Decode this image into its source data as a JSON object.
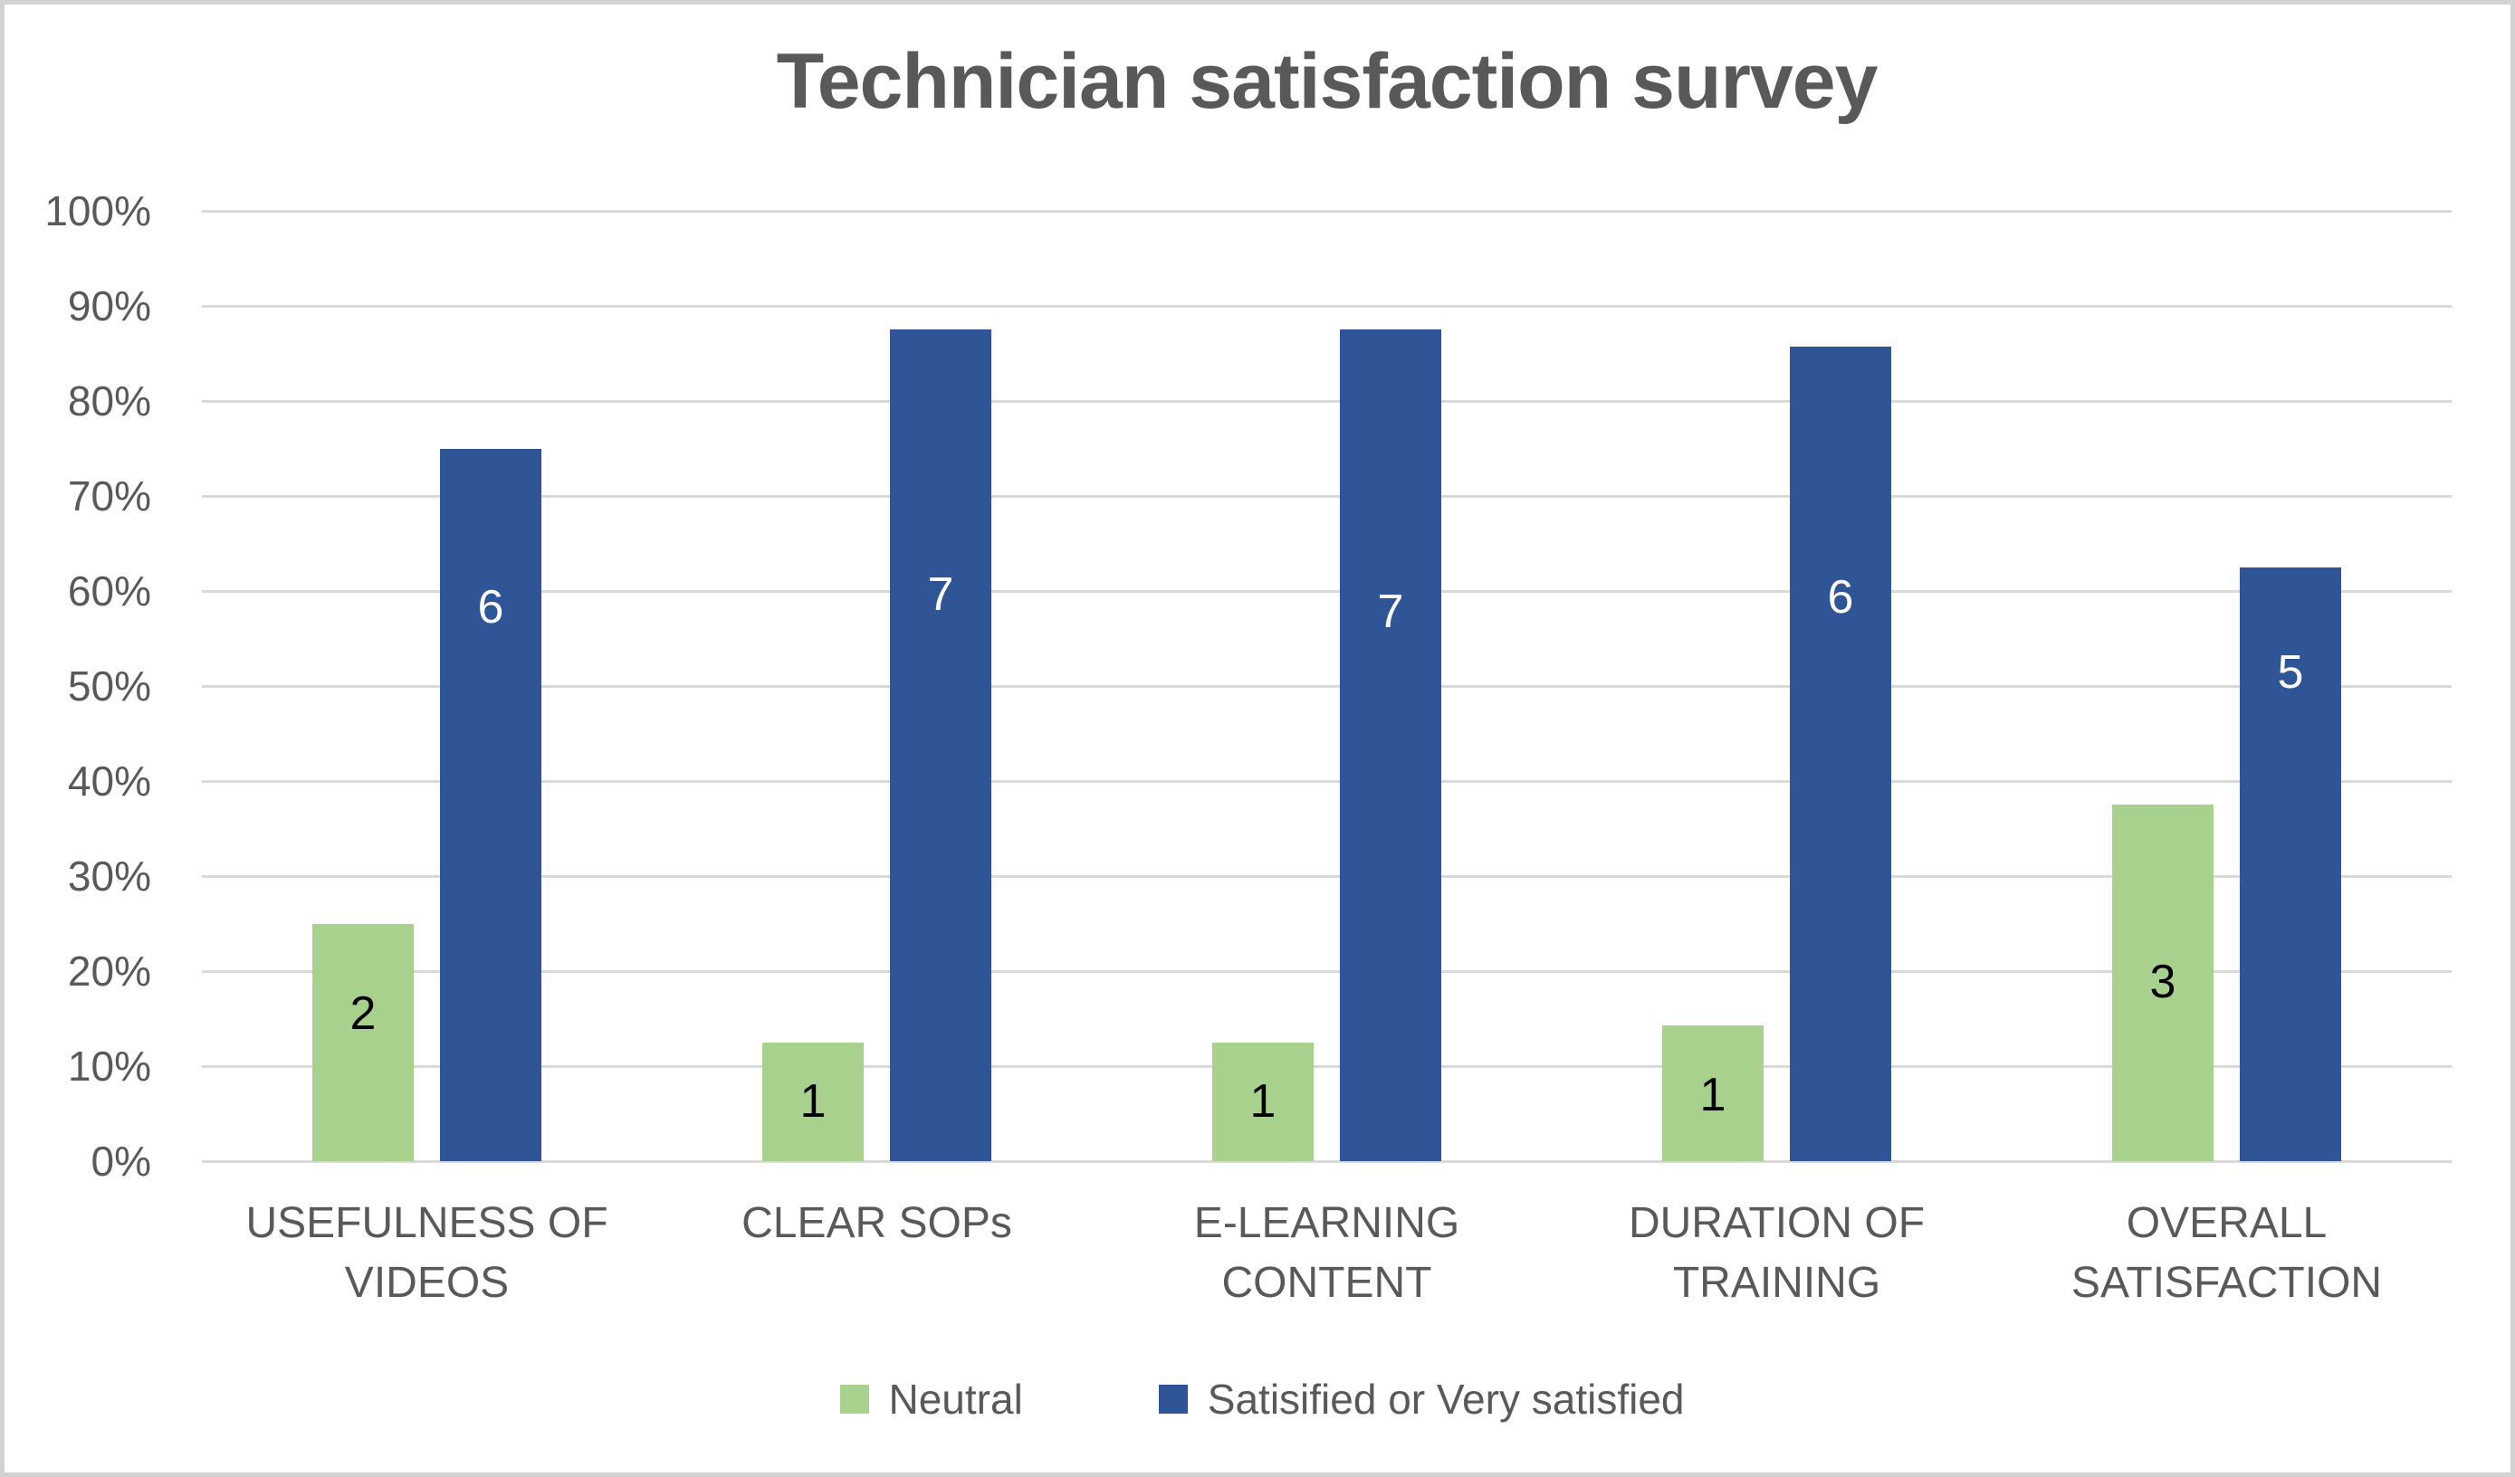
{
  "chart_data": {
    "type": "bar",
    "title": "Technician satisfaction survey",
    "categories": [
      "USEFULNESS OF\nVIDEOS",
      "CLEAR SOPs",
      "E-LEARNING\nCONTENT",
      "DURATION OF\nTRAINING",
      "OVERALL\nSATISFACTION"
    ],
    "series": [
      {
        "name": "Neutral",
        "color": "#A9D18E",
        "counts": [
          2,
          1,
          1,
          1,
          3
        ],
        "values_pct": [
          25,
          12.5,
          12.5,
          14.3,
          37.5
        ],
        "labels": [
          "2",
          "1",
          "1",
          "1",
          "3"
        ],
        "label_color": "#000000",
        "label_y_pct": [
          15.5,
          6.3,
          6.3,
          7.0,
          18.9
        ]
      },
      {
        "name": "Satisified or Very satisfied",
        "color": "#2F5597",
        "counts": [
          6,
          7,
          7,
          6,
          5
        ],
        "values_pct": [
          75,
          87.5,
          87.5,
          85.7,
          62.5
        ],
        "labels": [
          "6",
          "7",
          "7",
          "6",
          "5"
        ],
        "label_color": "#FFFFFF",
        "label_y_pct": [
          58.3,
          59.6,
          57.8,
          59.3,
          51.4
        ]
      }
    ],
    "y_axis": {
      "min": 0,
      "max": 100,
      "tick_step": 10,
      "ticks": [
        "0%",
        "10%",
        "20%",
        "30%",
        "40%",
        "50%",
        "60%",
        "70%",
        "80%",
        "90%",
        "100%"
      ],
      "grid": true
    },
    "legend": {
      "position": "bottom",
      "entries": [
        "Neutral",
        "Satisified or Very satisfied"
      ]
    },
    "colors": {
      "text_gray": "#595959",
      "gridline": "#D9D9D9",
      "frame_border": "#D2D2D2",
      "background": "#FFFFFF"
    }
  }
}
